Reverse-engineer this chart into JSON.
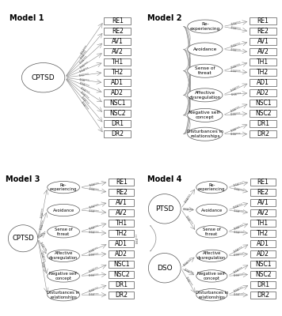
{
  "indicators": [
    "RE1",
    "RE2",
    "AV1",
    "AV2",
    "TH1",
    "TH2",
    "AD1",
    "AD2",
    "NSC1",
    "NSC2",
    "DR1",
    "DR2"
  ],
  "factors": [
    "Re-\nexperiencing",
    "Avoidance",
    "Sense of\nthreat",
    "Affective\ndysregulation",
    "Negative self-\nconcept",
    "Disturbances in\nrelationships"
  ],
  "line_color": "#888888",
  "title_fontsize": 7,
  "indicator_fontsize": 5.5,
  "factor_fontsize": 4.2,
  "main_fontsize": 6.5
}
